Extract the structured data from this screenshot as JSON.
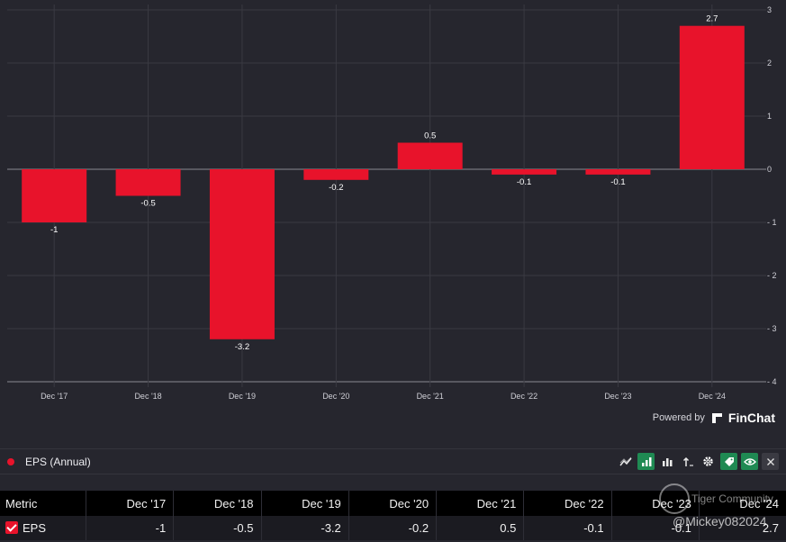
{
  "chart_data": {
    "type": "bar",
    "categories": [
      "Dec '17",
      "Dec '18",
      "Dec '19",
      "Dec '20",
      "Dec '21",
      "Dec '22",
      "Dec '23",
      "Dec '24"
    ],
    "values": [
      -1,
      -0.5,
      -3.2,
      -0.2,
      0.5,
      -0.1,
      -0.1,
      2.7
    ],
    "value_labels": [
      "-1",
      "-0.5",
      "-3.2",
      "-0.2",
      "0.5",
      "-0.1",
      "-0.1",
      "2.7"
    ],
    "series": [
      {
        "name": "EPS (Annual)",
        "values": [
          -1,
          -0.5,
          -3.2,
          -0.2,
          0.5,
          -0.1,
          -0.1,
          2.7
        ]
      }
    ],
    "y_ticks": [
      3,
      2,
      1,
      0,
      -1,
      -2,
      -3,
      -4
    ],
    "y_tick_labels": [
      "3",
      "2",
      "1",
      "0",
      "- 1",
      "- 2",
      "- 3",
      "- 4"
    ],
    "ylim": [
      -4,
      3
    ],
    "grid": true,
    "y_axis_side": "right",
    "bar_color": "#e8132b"
  },
  "footer": {
    "powered_by": "Powered by",
    "brand": "FinChat"
  },
  "legend": {
    "label": "EPS (Annual)",
    "color": "#e8132b"
  },
  "toolbar": {
    "icons": [
      "line-chart-icon",
      "bar-chart-icon",
      "stacked-bar-icon",
      "sort-icon",
      "gear-icon",
      "tag-icon",
      "eye-icon",
      "close-icon"
    ]
  },
  "table": {
    "header": [
      "Metric",
      "Dec '17",
      "Dec '18",
      "Dec '19",
      "Dec '20",
      "Dec '21",
      "Dec '22",
      "Dec '23",
      "Dec '24"
    ],
    "row": {
      "metric": "EPS",
      "values": [
        "-1",
        "-0.5",
        "-3.2",
        "-0.2",
        "0.5",
        "-0.1",
        "-0.1",
        "2.7"
      ]
    }
  },
  "watermark": {
    "community": "Tiger Community",
    "user": "@Mickey082024"
  }
}
